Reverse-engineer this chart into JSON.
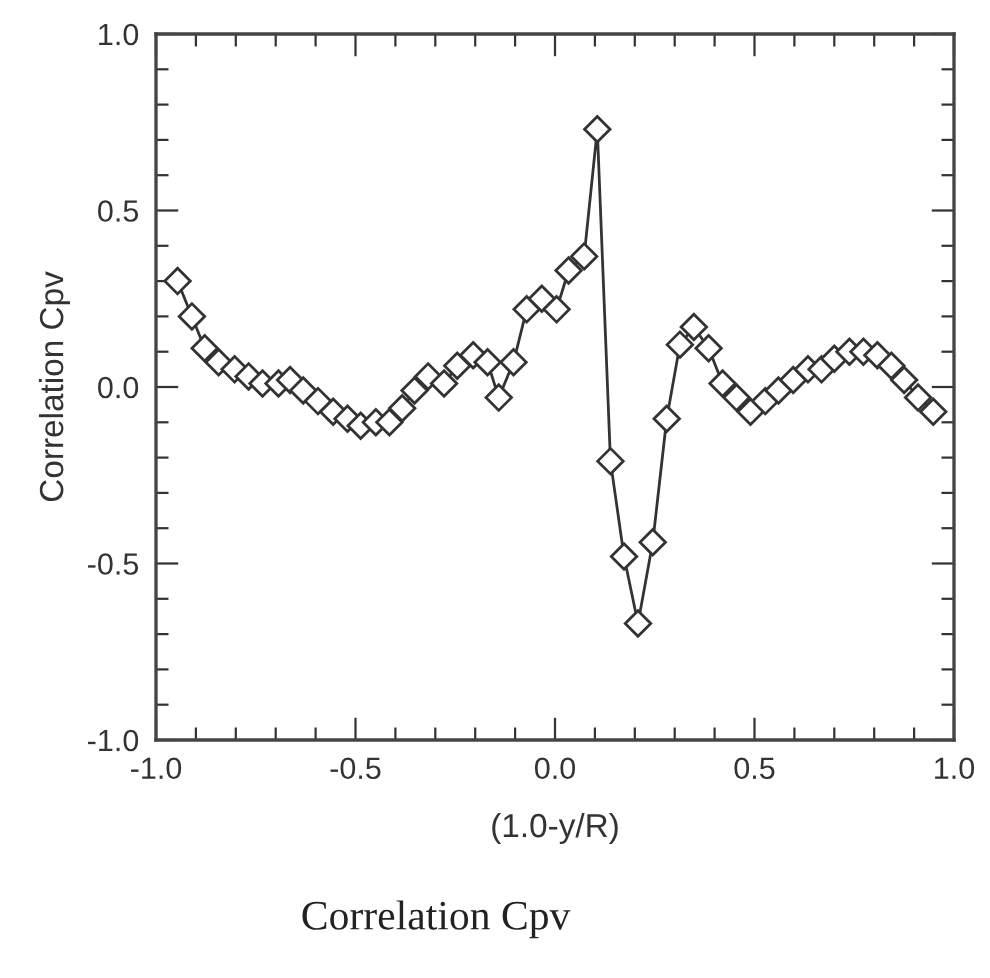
{
  "chart_data": {
    "type": "line",
    "title": "Correlation Cpv",
    "xlabel": "(1.0-y/R)",
    "ylabel": "Correlation Cpv",
    "x": [
      -0.946,
      -0.91,
      -0.878,
      -0.843,
      -0.803,
      -0.768,
      -0.733,
      -0.693,
      -0.664,
      -0.631,
      -0.594,
      -0.556,
      -0.52,
      -0.487,
      -0.449,
      -0.415,
      -0.383,
      -0.352,
      -0.318,
      -0.278,
      -0.245,
      -0.205,
      -0.169,
      -0.141,
      -0.104,
      -0.071,
      -0.033,
      0.004,
      0.034,
      0.073,
      0.106,
      0.139,
      0.173,
      0.208,
      0.245,
      0.28,
      0.313,
      0.348,
      0.385,
      0.42,
      0.455,
      0.49,
      0.527,
      0.56,
      0.597,
      0.634,
      0.668,
      0.7,
      0.738,
      0.773,
      0.808,
      0.843,
      0.875,
      0.91,
      0.948
    ],
    "series": [
      {
        "color": "#333333",
        "values": [
          0.3,
          0.2,
          0.11,
          0.07,
          0.05,
          0.03,
          0.01,
          0.01,
          0.02,
          -0.01,
          -0.04,
          -0.07,
          -0.09,
          -0.11,
          -0.1,
          -0.1,
          -0.06,
          -0.01,
          0.03,
          0.01,
          0.06,
          0.09,
          0.07,
          -0.03,
          0.07,
          0.22,
          0.25,
          0.22,
          0.33,
          0.37,
          0.73,
          -0.21,
          -0.48,
          -0.67,
          -0.44,
          -0.09,
          0.12,
          0.17,
          0.11,
          0.01,
          -0.03,
          -0.07,
          -0.04,
          -0.01,
          0.02,
          0.05,
          0.05,
          0.08,
          0.1,
          0.1,
          0.09,
          0.06,
          0.02,
          -0.03,
          -0.07
        ]
      }
    ],
    "xlim": [
      -1.0,
      1.0
    ],
    "ylim": [
      -1.0,
      1.0
    ],
    "xticks": [
      {
        "value": -1.0,
        "label": "-1.0"
      },
      {
        "value": -0.9,
        "label": null
      },
      {
        "value": -0.8,
        "label": null
      },
      {
        "value": -0.7,
        "label": null
      },
      {
        "value": -0.6,
        "label": null
      },
      {
        "value": -0.5,
        "label": "-0.5"
      },
      {
        "value": -0.4,
        "label": null
      },
      {
        "value": -0.3,
        "label": null
      },
      {
        "value": -0.2,
        "label": null
      },
      {
        "value": -0.1,
        "label": null
      },
      {
        "value": 0.0,
        "label": "0.0"
      },
      {
        "value": 0.1,
        "label": null
      },
      {
        "value": 0.2,
        "label": null
      },
      {
        "value": 0.3,
        "label": null
      },
      {
        "value": 0.4,
        "label": null
      },
      {
        "value": 0.5,
        "label": "0.5"
      },
      {
        "value": 0.6,
        "label": null
      },
      {
        "value": 0.7,
        "label": null
      },
      {
        "value": 0.8,
        "label": null
      },
      {
        "value": 0.9,
        "label": null
      },
      {
        "value": 1.0,
        "label": "1.0"
      }
    ],
    "yticks": [
      {
        "value": -1.0,
        "label": "-1.0"
      },
      {
        "value": -0.9,
        "label": null
      },
      {
        "value": -0.8,
        "label": null
      },
      {
        "value": -0.7,
        "label": null
      },
      {
        "value": -0.6,
        "label": null
      },
      {
        "value": -0.5,
        "label": "-0.5"
      },
      {
        "value": -0.4,
        "label": null
      },
      {
        "value": -0.3,
        "label": null
      },
      {
        "value": -0.2,
        "label": null
      },
      {
        "value": -0.1,
        "label": null
      },
      {
        "value": 0.0,
        "label": "0.0"
      },
      {
        "value": 0.1,
        "label": null
      },
      {
        "value": 0.2,
        "label": null
      },
      {
        "value": 0.3,
        "label": null
      },
      {
        "value": 0.4,
        "label": null
      },
      {
        "value": 0.5,
        "label": "0.5"
      },
      {
        "value": 0.6,
        "label": null
      },
      {
        "value": 0.7,
        "label": null
      },
      {
        "value": 0.8,
        "label": null
      },
      {
        "value": 0.9,
        "label": null
      },
      {
        "value": 1.0,
        "label": "1.0"
      }
    ],
    "marker": "diamond",
    "line_style": "solid",
    "grid": false,
    "legend": false
  }
}
